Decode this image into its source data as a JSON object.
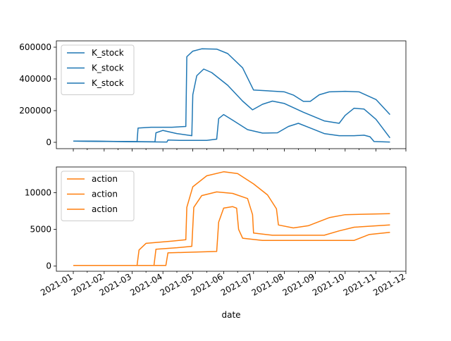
{
  "chart_data": {
    "type": "line",
    "xlabel": "date",
    "x_tick_labels": [
      "2021-01",
      "2021-02",
      "2021-03",
      "2021-04",
      "2021-05",
      "2021-06",
      "2021-07",
      "2021-08",
      "2021-09",
      "2021-10",
      "2021-11",
      "2021-12"
    ],
    "x_range": [
      "2020-12-15",
      "2021-12-01"
    ],
    "panels": [
      {
        "ylim": [
          -40000,
          640000
        ],
        "yticks": [
          0,
          200000,
          400000,
          600000
        ],
        "legend_placement": "upper-left",
        "color": "#1f77b4",
        "series": [
          {
            "name": "K_stock",
            "points": [
              [
                "2021-01-01",
                8000
              ],
              [
                "2021-03-06",
                4000
              ],
              [
                "2021-03-07",
                90000
              ],
              [
                "2021-03-20",
                95000
              ],
              [
                "2021-04-10",
                95000
              ],
              [
                "2021-04-24",
                100000
              ],
              [
                "2021-04-25",
                540000
              ],
              [
                "2021-05-01",
                575000
              ],
              [
                "2021-05-10",
                590000
              ],
              [
                "2021-05-25",
                588000
              ],
              [
                "2021-06-05",
                560000
              ],
              [
                "2021-06-20",
                470000
              ],
              [
                "2021-07-01",
                330000
              ],
              [
                "2021-07-15",
                325000
              ],
              [
                "2021-08-01",
                318000
              ],
              [
                "2021-08-10",
                298000
              ],
              [
                "2021-08-20",
                258000
              ],
              [
                "2021-08-27",
                258000
              ],
              [
                "2021-09-05",
                300000
              ],
              [
                "2021-09-15",
                318000
              ],
              [
                "2021-10-01",
                322000
              ],
              [
                "2021-10-15",
                318000
              ],
              [
                "2021-11-01",
                270000
              ],
              [
                "2021-11-15",
                175000
              ]
            ]
          },
          {
            "name": "K_stock",
            "points": [
              [
                "2021-01-01",
                8000
              ],
              [
                "2021-03-24",
                3000
              ],
              [
                "2021-03-25",
                60000
              ],
              [
                "2021-04-01",
                75000
              ],
              [
                "2021-04-15",
                55000
              ],
              [
                "2021-04-30",
                42000
              ],
              [
                "2021-05-01",
                300000
              ],
              [
                "2021-05-05",
                420000
              ],
              [
                "2021-05-12",
                462000
              ],
              [
                "2021-05-20",
                440000
              ],
              [
                "2021-06-05",
                360000
              ],
              [
                "2021-06-20",
                260000
              ],
              [
                "2021-06-30",
                205000
              ],
              [
                "2021-07-10",
                240000
              ],
              [
                "2021-07-20",
                260000
              ],
              [
                "2021-08-01",
                245000
              ],
              [
                "2021-08-20",
                190000
              ],
              [
                "2021-09-10",
                135000
              ],
              [
                "2021-09-25",
                120000
              ],
              [
                "2021-10-01",
                170000
              ],
              [
                "2021-10-10",
                215000
              ],
              [
                "2021-10-20",
                210000
              ],
              [
                "2021-11-01",
                145000
              ],
              [
                "2021-11-15",
                28000
              ]
            ]
          },
          {
            "name": "K_stock",
            "points": [
              [
                "2021-01-01",
                8000
              ],
              [
                "2021-04-05",
                2000
              ],
              [
                "2021-04-06",
                14000
              ],
              [
                "2021-04-20",
                12000
              ],
              [
                "2021-05-15",
                12000
              ],
              [
                "2021-05-25",
                20000
              ],
              [
                "2021-05-27",
                150000
              ],
              [
                "2021-06-01",
                175000
              ],
              [
                "2021-06-10",
                140000
              ],
              [
                "2021-06-25",
                80000
              ],
              [
                "2021-07-10",
                58000
              ],
              [
                "2021-07-25",
                60000
              ],
              [
                "2021-08-05",
                100000
              ],
              [
                "2021-08-15",
                120000
              ],
              [
                "2021-08-25",
                95000
              ],
              [
                "2021-09-10",
                55000
              ],
              [
                "2021-09-25",
                42000
              ],
              [
                "2021-10-10",
                42000
              ],
              [
                "2021-10-20",
                45000
              ],
              [
                "2021-10-26",
                35000
              ],
              [
                "2021-10-30",
                5000
              ],
              [
                "2021-11-15",
                2000
              ]
            ]
          }
        ]
      },
      {
        "ylim": [
          -700,
          13500
        ],
        "yticks": [
          0,
          5000,
          10000
        ],
        "legend_placement": "upper-left",
        "color": "#ff7f0e",
        "series": [
          {
            "name": "action",
            "points": [
              [
                "2021-01-01",
                100
              ],
              [
                "2021-03-06",
                100
              ],
              [
                "2021-03-08",
                2200
              ],
              [
                "2021-03-15",
                3100
              ],
              [
                "2021-04-10",
                3400
              ],
              [
                "2021-04-24",
                3600
              ],
              [
                "2021-04-25",
                8000
              ],
              [
                "2021-05-01",
                10800
              ],
              [
                "2021-05-15",
                12300
              ],
              [
                "2021-06-01",
                12850
              ],
              [
                "2021-06-15",
                12600
              ],
              [
                "2021-07-01",
                11200
              ],
              [
                "2021-07-15",
                9700
              ],
              [
                "2021-07-24",
                7800
              ],
              [
                "2021-07-26",
                5600
              ],
              [
                "2021-08-10",
                5200
              ],
              [
                "2021-08-25",
                5500
              ],
              [
                "2021-09-15",
                6600
              ],
              [
                "2021-10-01",
                7000
              ],
              [
                "2021-11-15",
                7150
              ]
            ]
          },
          {
            "name": "action",
            "points": [
              [
                "2021-01-01",
                100
              ],
              [
                "2021-03-23",
                100
              ],
              [
                "2021-03-25",
                2300
              ],
              [
                "2021-04-15",
                2500
              ],
              [
                "2021-04-30",
                2700
              ],
              [
                "2021-05-02",
                8000
              ],
              [
                "2021-05-10",
                9600
              ],
              [
                "2021-05-25",
                10100
              ],
              [
                "2021-06-10",
                9900
              ],
              [
                "2021-06-25",
                9200
              ],
              [
                "2021-06-30",
                7000
              ],
              [
                "2021-07-01",
                4500
              ],
              [
                "2021-07-20",
                4200
              ],
              [
                "2021-09-10",
                4200
              ],
              [
                "2021-09-25",
                4800
              ],
              [
                "2021-10-10",
                5300
              ],
              [
                "2021-11-15",
                5600
              ]
            ]
          },
          {
            "name": "action",
            "points": [
              [
                "2021-01-01",
                100
              ],
              [
                "2021-04-04",
                100
              ],
              [
                "2021-04-06",
                1800
              ],
              [
                "2021-05-01",
                1900
              ],
              [
                "2021-05-25",
                2000
              ],
              [
                "2021-05-27",
                6000
              ],
              [
                "2021-06-01",
                7900
              ],
              [
                "2021-06-10",
                8100
              ],
              [
                "2021-06-14",
                7900
              ],
              [
                "2021-06-16",
                5000
              ],
              [
                "2021-06-20",
                3800
              ],
              [
                "2021-07-10",
                3500
              ],
              [
                "2021-10-10",
                3500
              ],
              [
                "2021-10-25",
                4300
              ],
              [
                "2021-11-15",
                4600
              ]
            ]
          }
        ]
      }
    ]
  }
}
